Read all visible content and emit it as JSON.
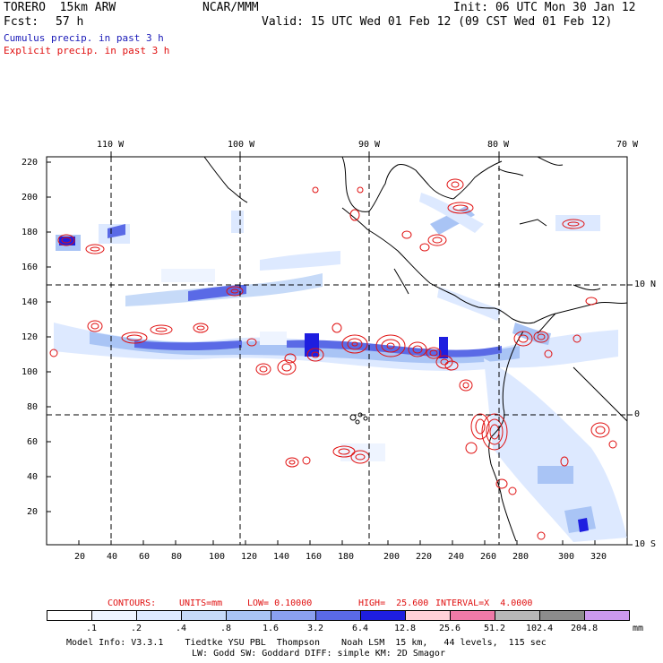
{
  "header": {
    "model": "TORERO  15km ARW",
    "org": "NCAR/MMM",
    "init": "Init: 06 UTC Mon 30 Jan 12",
    "fcst_label": "Fcst:",
    "fcst_value": "57 h",
    "valid": "Valid: 15 UTC Wed 01 Feb 12 (09 CST Wed 01 Feb 12)",
    "cumulus": "Cumulus precip. in past 3 h",
    "explicit": "Explicit precip. in past 3 h"
  },
  "axes": {
    "top_lon": [
      "110 W",
      "100 W",
      "90 W",
      "80 W",
      "70 W"
    ],
    "right_lat": [
      "10 N",
      "0",
      "10 S"
    ],
    "y_ticks": [
      "220",
      "200",
      "180",
      "160",
      "140",
      "120",
      "100",
      "80",
      "60",
      "40",
      "20"
    ],
    "x_ticks": [
      "20",
      "40",
      "60",
      "80",
      "100",
      "120",
      "140",
      "160",
      "180",
      "200",
      "220",
      "240",
      "260",
      "280",
      "300",
      "320"
    ]
  },
  "contours": {
    "label": "CONTOURS:",
    "units": "UNITS=mm",
    "low": "LOW= 0.10000",
    "high": "HIGH=  25.600",
    "interval": "INTERVAL=X  4.0000"
  },
  "legend": {
    "values": [
      ".1",
      ".2",
      ".4",
      ".8",
      "1.6",
      "3.2",
      "6.4",
      "12.8",
      "25.6",
      "51.2",
      "102.4",
      "204.8"
    ],
    "unit": "mm",
    "colors": [
      "#ffffff",
      "#eef4ff",
      "#dde9ff",
      "#c6daf8",
      "#a9c4f5",
      "#8aa0f0",
      "#5a6ae6",
      "#1e1ee0",
      "#ffd0d8",
      "#f07aa8",
      "#b8b8b8",
      "#8c8c8c",
      "#cc99ee"
    ]
  },
  "footer": {
    "line1": "Model Info: V3.3.1    Tiedtke YSU PBL  Thompson    Noah LSM  15 km,   44 levels,  115 sec",
    "line2": "LW: Godd SW: Goddard DIFF: simple KM: 2D Smagor"
  }
}
